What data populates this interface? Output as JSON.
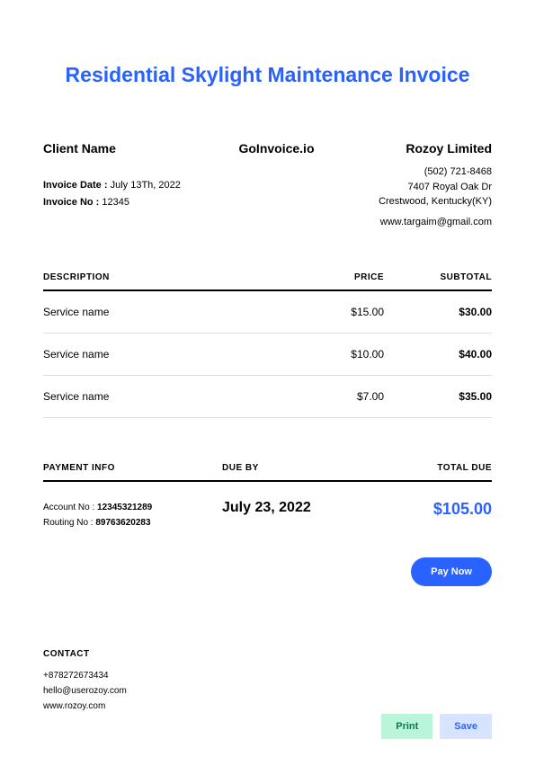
{
  "title": "Residential Skylight Maintenance Invoice",
  "client_name_label": "Client Name",
  "brand": "GoInvoice.io",
  "company": {
    "name": "Rozoy Limited",
    "phone": "(502) 721-8468",
    "addr1": "7407 Royal Oak Dr",
    "addr2": "Crestwood, Kentucky(KY)",
    "email": "www.targaim@gmail.com"
  },
  "invoice": {
    "date_label": "Invoice Date :",
    "date": " July 13Th, 2022",
    "no_label": "Invoice No :",
    "no": " 12345"
  },
  "table": {
    "columns": [
      "DESCRIPTION",
      "PRICE",
      "SUBTOTAL"
    ],
    "rows": [
      {
        "desc": "Service name",
        "price": "$15.00",
        "subtotal": "$30.00"
      },
      {
        "desc": "Service name",
        "price": "$10.00",
        "subtotal": "$40.00"
      },
      {
        "desc": "Service name",
        "price": "$7.00",
        "subtotal": "$35.00"
      }
    ]
  },
  "summary": {
    "payment_info_label": "PAYMENT INFO",
    "due_by_label": "DUE BY",
    "total_due_label": "TOTAL DUE",
    "account_label": "Account No : ",
    "account": "12345321289",
    "routing_label": "Routing No : ",
    "routing": "89763620283",
    "due_date": "July 23, 2022",
    "total": "$105.00"
  },
  "pay_now": "Pay Now",
  "contact": {
    "heading": "CONTACT",
    "phone": "+878272673434",
    "email": "hello@userozoy.com",
    "web": "www.rozoy.com"
  },
  "actions": {
    "print": "Print",
    "save": "Save"
  },
  "colors": {
    "accent": "#2962ff",
    "print_bg": "#b9f5d8",
    "save_bg": "#d6e4ff"
  }
}
